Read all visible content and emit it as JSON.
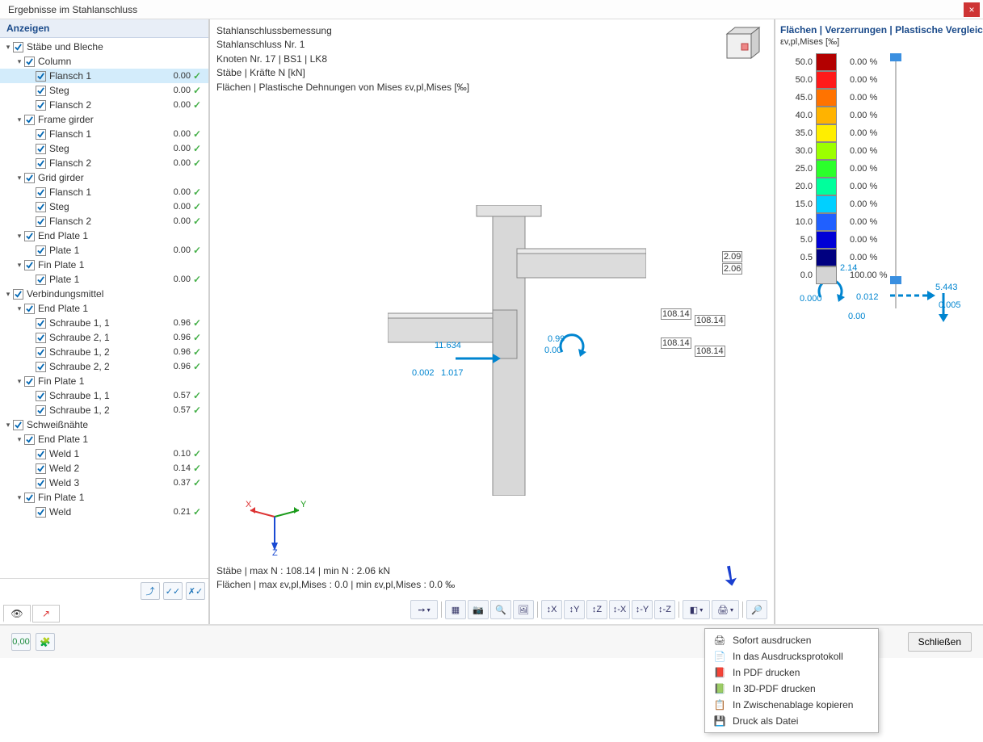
{
  "window": {
    "title": "Ergebnisse im Stahlanschluss"
  },
  "tree": {
    "header": "Anzeigen",
    "nodes": [
      {
        "ind": 0,
        "caret": "▾",
        "chk": true,
        "label": "Stäbe und Bleche"
      },
      {
        "ind": 1,
        "caret": "▾",
        "chk": true,
        "label": "Column"
      },
      {
        "ind": 2,
        "chk": true,
        "label": "Flansch 1",
        "val": "0.00",
        "ok": true,
        "sel": true
      },
      {
        "ind": 2,
        "chk": true,
        "label": "Steg",
        "val": "0.00",
        "ok": true
      },
      {
        "ind": 2,
        "chk": true,
        "label": "Flansch 2",
        "val": "0.00",
        "ok": true
      },
      {
        "ind": 1,
        "caret": "▾",
        "chk": true,
        "label": "Frame girder"
      },
      {
        "ind": 2,
        "chk": true,
        "label": "Flansch 1",
        "val": "0.00",
        "ok": true
      },
      {
        "ind": 2,
        "chk": true,
        "label": "Steg",
        "val": "0.00",
        "ok": true
      },
      {
        "ind": 2,
        "chk": true,
        "label": "Flansch 2",
        "val": "0.00",
        "ok": true
      },
      {
        "ind": 1,
        "caret": "▾",
        "chk": true,
        "label": "Grid girder"
      },
      {
        "ind": 2,
        "chk": true,
        "label": "Flansch 1",
        "val": "0.00",
        "ok": true
      },
      {
        "ind": 2,
        "chk": true,
        "label": "Steg",
        "val": "0.00",
        "ok": true
      },
      {
        "ind": 2,
        "chk": true,
        "label": "Flansch 2",
        "val": "0.00",
        "ok": true
      },
      {
        "ind": 1,
        "caret": "▾",
        "chk": true,
        "label": "End Plate 1"
      },
      {
        "ind": 2,
        "chk": true,
        "label": "Plate 1",
        "val": "0.00",
        "ok": true
      },
      {
        "ind": 1,
        "caret": "▾",
        "chk": true,
        "label": "Fin Plate 1"
      },
      {
        "ind": 2,
        "chk": true,
        "label": "Plate 1",
        "val": "0.00",
        "ok": true
      },
      {
        "ind": 0,
        "caret": "▾",
        "chk": true,
        "label": "Verbindungsmittel"
      },
      {
        "ind": 1,
        "caret": "▾",
        "chk": true,
        "label": "End Plate 1"
      },
      {
        "ind": 2,
        "chk": true,
        "label": "Schraube 1, 1",
        "val": "0.96",
        "ok": true
      },
      {
        "ind": 2,
        "chk": true,
        "label": "Schraube 2, 1",
        "val": "0.96",
        "ok": true
      },
      {
        "ind": 2,
        "chk": true,
        "label": "Schraube 1, 2",
        "val": "0.96",
        "ok": true
      },
      {
        "ind": 2,
        "chk": true,
        "label": "Schraube 2, 2",
        "val": "0.96",
        "ok": true
      },
      {
        "ind": 1,
        "caret": "▾",
        "chk": true,
        "label": "Fin Plate 1"
      },
      {
        "ind": 2,
        "chk": true,
        "label": "Schraube 1, 1",
        "val": "0.57",
        "ok": true
      },
      {
        "ind": 2,
        "chk": true,
        "label": "Schraube 1, 2",
        "val": "0.57",
        "ok": true
      },
      {
        "ind": 0,
        "caret": "▾",
        "chk": true,
        "label": "Schweißnähte"
      },
      {
        "ind": 1,
        "caret": "▾",
        "chk": true,
        "label": "End Plate 1"
      },
      {
        "ind": 2,
        "chk": true,
        "label": "Weld 1",
        "val": "0.10",
        "ok": true
      },
      {
        "ind": 2,
        "chk": true,
        "label": "Weld 2",
        "val": "0.14",
        "ok": true
      },
      {
        "ind": 2,
        "chk": true,
        "label": "Weld 3",
        "val": "0.37",
        "ok": true
      },
      {
        "ind": 1,
        "caret": "▾",
        "chk": true,
        "label": "Fin Plate 1"
      },
      {
        "ind": 2,
        "chk": true,
        "label": "Weld",
        "val": "0.21",
        "ok": true
      }
    ]
  },
  "viewport": {
    "info": [
      "Stahlanschlussbemessung",
      "Stahlanschluss Nr. 1",
      "Knoten Nr. 17 | BS1 | LK8",
      "Stäbe | Kräfte N [kN]",
      "Flächen | Plastische Dehnungen von Mises εv,pl,Mises [‰]"
    ],
    "annotations": {
      "left_force": "11.634",
      "left_small1": "0.002",
      "left_small2": "1.017",
      "mid_top1": "2.09",
      "mid_top2": "2.06",
      "mid_val": "108.14",
      "zero": "0.00",
      "near_right": "0.99",
      "right_force": "2.14",
      "right_small1": "0.012",
      "right_small2": "0.000",
      "far_right": "5.443",
      "far_right2": "0.005"
    },
    "csys": {
      "x": "X",
      "y": "Y",
      "z": "Z"
    },
    "footer_lines": [
      "Stäbe | max N : 108.14 | min N : 2.06 kN",
      "Flächen | max εv,pl,Mises : 0.0 | min εv,pl,Mises : 0.0 ‰"
    ],
    "toolbar_icons": [
      "➙",
      "▦",
      "📷",
      "🔍",
      "🖼",
      "↕X",
      "↕Y",
      "↕Z",
      "↕-X",
      "↕-Y",
      "↕-Z",
      "◧",
      "🖨",
      "🔎"
    ]
  },
  "legend": {
    "title": "Flächen | Verzerrungen | Plastische Vergleichsdehnung",
    "subtitle": "εv,pl,Mises [‰]",
    "rows": [
      {
        "val": "50.0",
        "color": "#b30000",
        "pct": "0.00 %"
      },
      {
        "val": "50.0",
        "color": "#ff1a1a",
        "pct": "0.00 %"
      },
      {
        "val": "45.0",
        "color": "#ff7300",
        "pct": "0.00 %"
      },
      {
        "val": "40.0",
        "color": "#ffb300",
        "pct": "0.00 %"
      },
      {
        "val": "35.0",
        "color": "#ffee00",
        "pct": "0.00 %"
      },
      {
        "val": "30.0",
        "color": "#9cff00",
        "pct": "0.00 %"
      },
      {
        "val": "25.0",
        "color": "#2bff2b",
        "pct": "0.00 %"
      },
      {
        "val": "20.0",
        "color": "#00ff9c",
        "pct": "0.00 %"
      },
      {
        "val": "15.0",
        "color": "#00d0ff",
        "pct": "0.00 %"
      },
      {
        "val": "10.0",
        "color": "#2060ff",
        "pct": "0.00 %"
      },
      {
        "val": "5.0",
        "color": "#0000d6",
        "pct": "0.00 %"
      },
      {
        "val": "0.5",
        "color": "#000080",
        "pct": "0.00 %"
      },
      {
        "val": "0.0",
        "color": "#d4d4d4",
        "pct": "100.00 %"
      }
    ]
  },
  "dropdown": {
    "items": [
      {
        "icon": "🖨",
        "label": "Sofort ausdrucken"
      },
      {
        "icon": "📄",
        "label": "In das Ausdrucksprotokoll"
      },
      {
        "icon": "📕",
        "label": "In PDF drucken"
      },
      {
        "icon": "📗",
        "label": "In 3D-PDF drucken"
      },
      {
        "icon": "📋",
        "label": "In Zwischenablage kopieren"
      },
      {
        "icon": "💾",
        "label": "Druck als Datei"
      }
    ]
  },
  "footer": {
    "close": "Schließen"
  }
}
